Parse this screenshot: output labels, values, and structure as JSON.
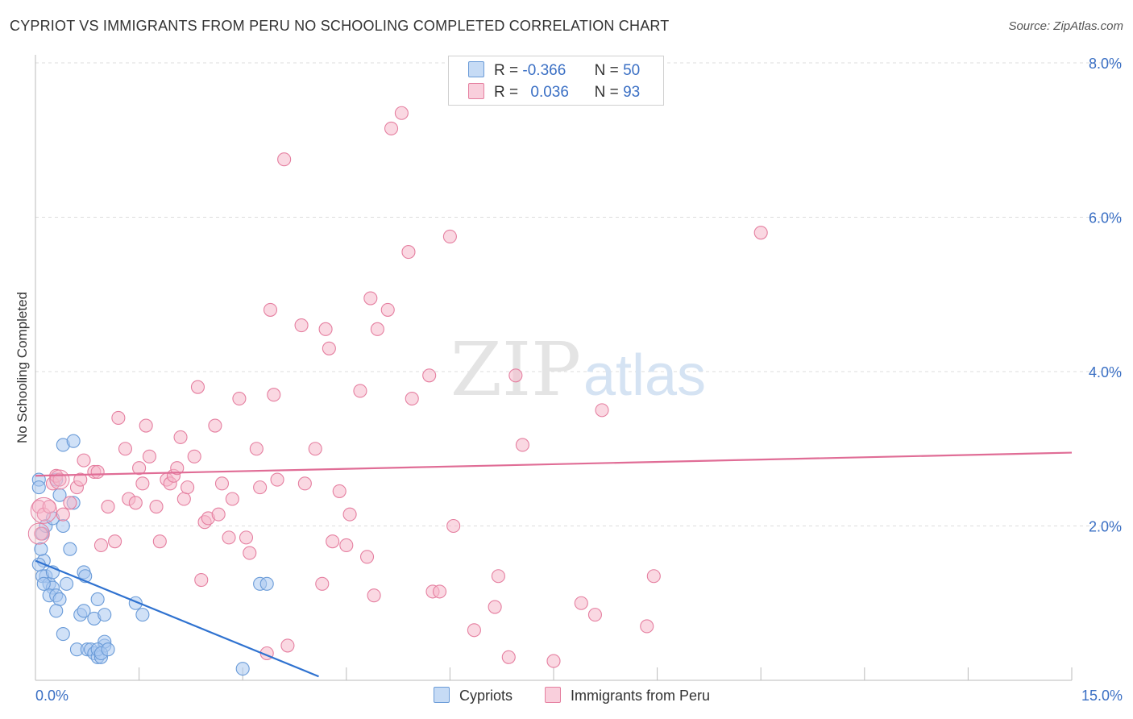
{
  "title": "CYPRIOT VS IMMIGRANTS FROM PERU NO SCHOOLING COMPLETED CORRELATION CHART",
  "source": "Source: ZipAtlas.com",
  "watermark": {
    "zip": "ZIP",
    "atlas": "atlas"
  },
  "legend": {
    "r_label": "R =",
    "n_label": "N =",
    "rows": [
      {
        "r": "-0.366",
        "n": "50",
        "color": "#a9c8f0",
        "border": "#6a9bd8"
      },
      {
        "r": "0.036",
        "n": "93",
        "color": "#f6b8cb",
        "border": "#e57fa0"
      }
    ]
  },
  "bottom_legend": [
    {
      "label": "Cypriots",
      "color": "#a9c8f0",
      "border": "#6a9bd8"
    },
    {
      "label": "Immigrants from Peru",
      "color": "#f6b8cb",
      "border": "#e57fa0"
    }
  ],
  "chart_data": {
    "type": "scatter",
    "title": "CYPRIOT VS IMMIGRANTS FROM PERU NO SCHOOLING COMPLETED CORRELATION CHART",
    "xlabel": "",
    "ylabel": "No Schooling Completed",
    "xlim": [
      0,
      15
    ],
    "ylim": [
      0,
      8
    ],
    "x_tick_labels": [
      "0.0%",
      "15.0%"
    ],
    "y_ticks": [
      2,
      4,
      6,
      8
    ],
    "y_tick_labels": [
      "2.0%",
      "4.0%",
      "6.0%",
      "8.0%"
    ],
    "grid": true,
    "series": [
      {
        "name": "Cypriots",
        "color": "#6a9bd8",
        "fill": "#a9c8f0",
        "trend": {
          "x": [
            0.0,
            4.1
          ],
          "y": [
            1.55,
            0.05
          ],
          "color": "#2f72d0"
        },
        "points": [
          [
            0.05,
            2.6
          ],
          [
            0.05,
            2.5
          ],
          [
            0.1,
            1.9
          ],
          [
            0.12,
            1.55
          ],
          [
            0.15,
            1.35
          ],
          [
            0.1,
            1.35
          ],
          [
            0.2,
            1.25
          ],
          [
            0.25,
            1.2
          ],
          [
            0.2,
            1.1
          ],
          [
            0.3,
            1.1
          ],
          [
            0.35,
            1.05
          ],
          [
            0.15,
            2.0
          ],
          [
            0.25,
            2.1
          ],
          [
            0.3,
            2.6
          ],
          [
            0.35,
            2.4
          ],
          [
            0.4,
            2.0
          ],
          [
            0.45,
            1.25
          ],
          [
            0.5,
            1.7
          ],
          [
            0.55,
            2.3
          ],
          [
            0.4,
            3.05
          ],
          [
            0.55,
            3.1
          ],
          [
            0.25,
            1.4
          ],
          [
            0.3,
            0.9
          ],
          [
            0.4,
            0.6
          ],
          [
            0.6,
            0.4
          ],
          [
            0.65,
            0.85
          ],
          [
            0.7,
            0.9
          ],
          [
            0.7,
            1.4
          ],
          [
            0.72,
            1.35
          ],
          [
            0.85,
            0.8
          ],
          [
            0.9,
            1.05
          ],
          [
            1.0,
            0.85
          ],
          [
            0.75,
            0.4
          ],
          [
            0.8,
            0.4
          ],
          [
            0.85,
            0.35
          ],
          [
            0.9,
            0.3
          ],
          [
            0.95,
            0.3
          ],
          [
            1.0,
            0.45
          ],
          [
            1.0,
            0.5
          ],
          [
            1.45,
            1.0
          ],
          [
            1.55,
            0.85
          ],
          [
            0.05,
            1.5
          ],
          [
            0.08,
            1.7
          ],
          [
            0.12,
            1.25
          ],
          [
            0.9,
            0.4
          ],
          [
            0.95,
            0.35
          ],
          [
            1.05,
            0.4
          ],
          [
            3.0,
            0.15
          ],
          [
            3.25,
            1.25
          ],
          [
            3.35,
            1.25
          ]
        ]
      },
      {
        "name": "Immigrants from Peru",
        "color": "#e57fa0",
        "fill": "#f6b8cb",
        "trend": {
          "x": [
            0.0,
            15.0
          ],
          "y": [
            2.65,
            2.95
          ],
          "color": "#e06d96"
        },
        "points": [
          [
            0.05,
            2.25
          ],
          [
            0.08,
            1.9
          ],
          [
            0.12,
            2.15
          ],
          [
            0.2,
            2.25
          ],
          [
            0.25,
            2.55
          ],
          [
            0.3,
            2.65
          ],
          [
            0.35,
            2.6
          ],
          [
            0.4,
            2.15
          ],
          [
            0.5,
            2.3
          ],
          [
            0.6,
            2.5
          ],
          [
            0.65,
            2.6
          ],
          [
            0.7,
            2.85
          ],
          [
            0.85,
            2.7
          ],
          [
            0.9,
            2.7
          ],
          [
            0.95,
            1.75
          ],
          [
            1.05,
            2.25
          ],
          [
            1.15,
            1.8
          ],
          [
            1.2,
            3.4
          ],
          [
            1.3,
            3.0
          ],
          [
            1.35,
            2.35
          ],
          [
            1.45,
            2.3
          ],
          [
            1.5,
            2.75
          ],
          [
            1.55,
            2.55
          ],
          [
            1.6,
            3.3
          ],
          [
            1.65,
            2.9
          ],
          [
            1.75,
            2.25
          ],
          [
            1.8,
            1.8
          ],
          [
            1.9,
            2.6
          ],
          [
            1.95,
            2.55
          ],
          [
            2.0,
            2.65
          ],
          [
            2.05,
            2.75
          ],
          [
            2.1,
            3.15
          ],
          [
            2.15,
            2.35
          ],
          [
            2.2,
            2.5
          ],
          [
            2.3,
            2.9
          ],
          [
            2.35,
            3.8
          ],
          [
            2.4,
            1.3
          ],
          [
            2.45,
            2.05
          ],
          [
            2.5,
            2.1
          ],
          [
            2.6,
            3.3
          ],
          [
            2.65,
            2.15
          ],
          [
            2.7,
            2.55
          ],
          [
            2.8,
            1.85
          ],
          [
            2.85,
            2.35
          ],
          [
            2.95,
            3.65
          ],
          [
            3.05,
            1.85
          ],
          [
            3.1,
            1.65
          ],
          [
            3.2,
            3.0
          ],
          [
            3.25,
            2.5
          ],
          [
            3.35,
            0.35
          ],
          [
            3.4,
            4.8
          ],
          [
            3.45,
            3.7
          ],
          [
            3.5,
            2.6
          ],
          [
            3.6,
            6.75
          ],
          [
            3.65,
            0.45
          ],
          [
            3.85,
            4.6
          ],
          [
            3.9,
            2.55
          ],
          [
            4.05,
            3.0
          ],
          [
            4.15,
            1.25
          ],
          [
            4.2,
            4.55
          ],
          [
            4.25,
            4.3
          ],
          [
            4.3,
            1.8
          ],
          [
            4.4,
            2.45
          ],
          [
            4.5,
            1.75
          ],
          [
            4.55,
            2.15
          ],
          [
            4.7,
            3.75
          ],
          [
            4.8,
            1.6
          ],
          [
            4.85,
            4.95
          ],
          [
            4.9,
            1.1
          ],
          [
            4.95,
            4.55
          ],
          [
            5.1,
            4.8
          ],
          [
            5.15,
            7.15
          ],
          [
            5.3,
            7.35
          ],
          [
            5.4,
            5.55
          ],
          [
            5.45,
            3.65
          ],
          [
            5.7,
            3.95
          ],
          [
            5.75,
            1.15
          ],
          [
            5.85,
            1.15
          ],
          [
            6.0,
            5.75
          ],
          [
            6.05,
            2.0
          ],
          [
            6.35,
            0.65
          ],
          [
            6.65,
            0.95
          ],
          [
            6.7,
            1.35
          ],
          [
            6.85,
            0.3
          ],
          [
            6.95,
            3.95
          ],
          [
            7.05,
            3.05
          ],
          [
            7.5,
            0.25
          ],
          [
            7.9,
            1.0
          ],
          [
            8.1,
            0.85
          ],
          [
            8.2,
            3.5
          ],
          [
            8.85,
            0.7
          ],
          [
            8.95,
            1.35
          ],
          [
            10.5,
            5.8
          ]
        ]
      }
    ]
  }
}
